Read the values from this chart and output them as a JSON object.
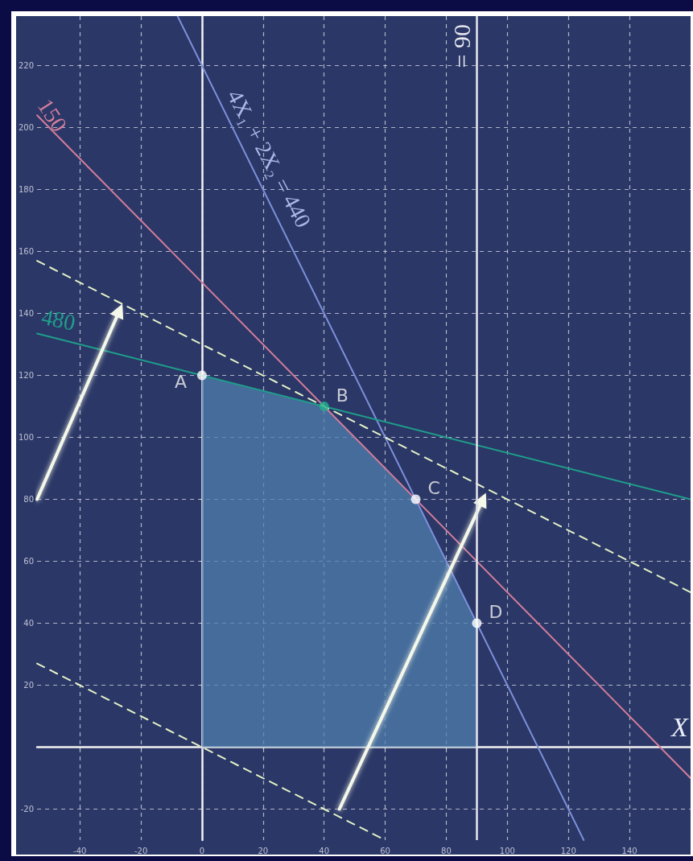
{
  "chart_data": {
    "type": "line",
    "xlabel": "X",
    "xlim": [
      -54,
      160
    ],
    "ylim": [
      -30,
      236
    ],
    "xticks": [
      -40,
      -20,
      0,
      20,
      40,
      60,
      80,
      100,
      120,
      140
    ],
    "yticks": [
      -20,
      {
        "value": 0,
        "label": null
      },
      20,
      40,
      60,
      80,
      100,
      120,
      140,
      160,
      180,
      200,
      220
    ],
    "grid": true,
    "series": [
      {
        "type": "area",
        "color": "#4f7fae",
        "x": [
          0,
          40,
          70,
          90
        ],
        "values": [
          120,
          110,
          80,
          40
        ]
      },
      {
        "color": "#d27d9c",
        "x": [
          -54,
          160
        ],
        "values": [
          204,
          -10
        ],
        "marker": "none"
      },
      {
        "color": "#7d90dc",
        "x": [
          -8,
          125
        ],
        "values": [
          236,
          -30
        ],
        "marker": "none"
      },
      {
        "color": "#1f9e8a",
        "x": [
          -54,
          160
        ],
        "values": [
          133.5,
          80
        ],
        "marker": "none"
      },
      {
        "color": "#e4f2c8",
        "x": [
          -54,
          160
        ],
        "values": [
          157,
          50
        ],
        "marker": "none",
        "line_style": "dashed"
      },
      {
        "color": "#e4f2c8",
        "x": [
          -54,
          60
        ],
        "values": [
          27,
          -30
        ],
        "marker": "none",
        "line_style": "dashed"
      },
      {
        "color": "#f4f8ea",
        "x": [
          45,
          92
        ],
        "values": [
          -20,
          80
        ],
        "marker": "triangle"
      },
      {
        "color": "#f4f8ea",
        "x": [
          -54,
          -27
        ],
        "values": [
          80,
          141
        ],
        "marker": "triangle"
      },
      {
        "type": "scatter",
        "colors": [
          "#ffffff",
          "#22b08c",
          "#ffffff",
          "#ffffff"
        ],
        "x": [
          0,
          40,
          70,
          90
        ],
        "values": [
          120,
          110,
          80,
          40
        ],
        "value_labels": [
          "A",
          "B",
          "C",
          "D"
        ],
        "marker": "circle"
      }
    ],
    "ref_lines": [
      {
        "axis": "x",
        "value": 90,
        "label": "= 90",
        "color": "#e6e6ee"
      }
    ],
    "annotations": [
      "150",
      "4X₁ + 2X₂ = 440",
      "480"
    ]
  }
}
